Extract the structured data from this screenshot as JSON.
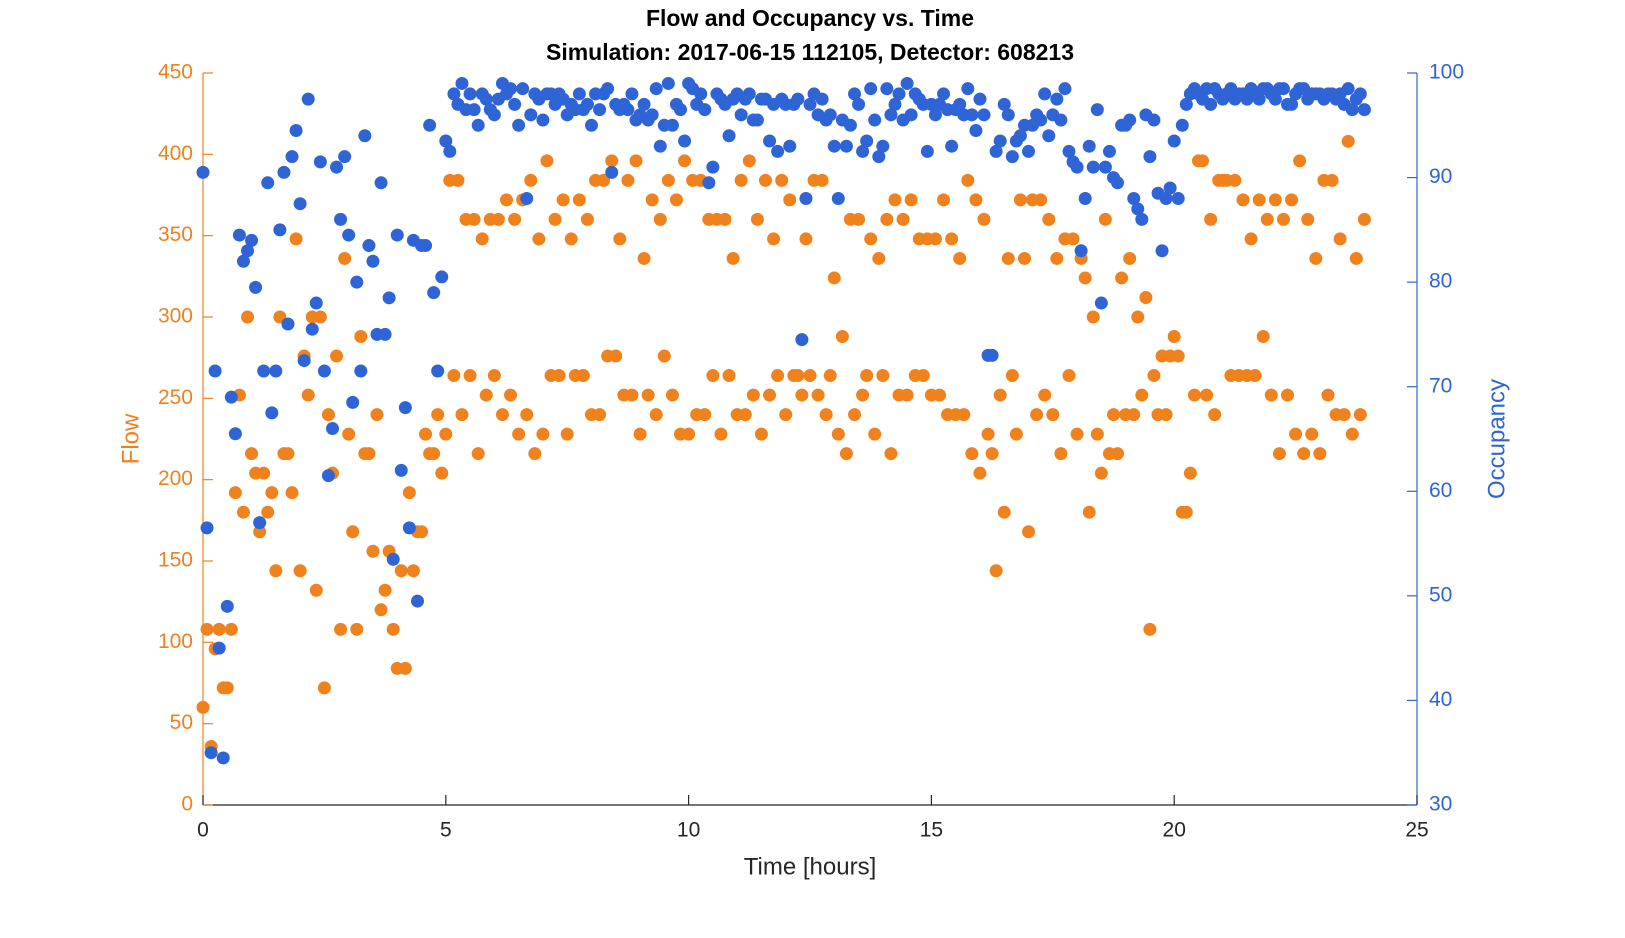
{
  "chart_data": {
    "type": "scatter",
    "title": "Flow and Occupancy vs. Time",
    "subtitle": "Simulation:  2017-06-15 112105,  Detector:  608213",
    "xlabel": "Time [hours]",
    "ylabel": "Flow",
    "y2label": "Occupancy",
    "xlim": [
      0,
      25
    ],
    "xticks": [
      0,
      5,
      10,
      15,
      20,
      25
    ],
    "ylim": [
      0,
      450
    ],
    "yticks": [
      0,
      50,
      100,
      150,
      200,
      250,
      300,
      350,
      400,
      450
    ],
    "y2lim": [
      30,
      100
    ],
    "y2ticks": [
      30,
      40,
      50,
      60,
      70,
      80,
      90,
      100
    ],
    "grid": false,
    "ycolor": "#f0821e",
    "y2color": "#2f64d6",
    "x": [
      0,
      0.083,
      0.167,
      0.25,
      0.333,
      0.417,
      0.5,
      0.583,
      0.667,
      0.75,
      0.833,
      0.917,
      1,
      1.083,
      1.167,
      1.25,
      1.333,
      1.417,
      1.5,
      1.583,
      1.667,
      1.75,
      1.833,
      1.917,
      2,
      2.083,
      2.167,
      2.25,
      2.333,
      2.417,
      2.5,
      2.583,
      2.667,
      2.75,
      2.833,
      2.917,
      3,
      3.083,
      3.167,
      3.25,
      3.333,
      3.417,
      3.5,
      3.583,
      3.667,
      3.75,
      3.833,
      3.917,
      4,
      4.083,
      4.167,
      4.25,
      4.333,
      4.417,
      4.5,
      4.583,
      4.667,
      4.75,
      4.833,
      4.917,
      5,
      5.083,
      5.167,
      5.25,
      5.333,
      5.417,
      5.5,
      5.583,
      5.667,
      5.75,
      5.833,
      5.917,
      6,
      6.083,
      6.167,
      6.25,
      6.333,
      6.417,
      6.5,
      6.583,
      6.667,
      6.75,
      6.833,
      6.917,
      7,
      7.083,
      7.167,
      7.25,
      7.333,
      7.417,
      7.5,
      7.583,
      7.667,
      7.75,
      7.833,
      7.917,
      8,
      8.083,
      8.167,
      8.25,
      8.333,
      8.417,
      8.5,
      8.583,
      8.667,
      8.75,
      8.833,
      8.917,
      9,
      9.083,
      9.167,
      9.25,
      9.333,
      9.417,
      9.5,
      9.583,
      9.667,
      9.75,
      9.833,
      9.917,
      10,
      10.083,
      10.167,
      10.25,
      10.333,
      10.417,
      10.5,
      10.583,
      10.667,
      10.75,
      10.833,
      10.917,
      11,
      11.083,
      11.167,
      11.25,
      11.333,
      11.417,
      11.5,
      11.583,
      11.667,
      11.75,
      11.833,
      11.917,
      12,
      12.083,
      12.167,
      12.25,
      12.333,
      12.417,
      12.5,
      12.583,
      12.667,
      12.75,
      12.833,
      12.917,
      13,
      13.083,
      13.167,
      13.25,
      13.333,
      13.417,
      13.5,
      13.583,
      13.667,
      13.75,
      13.833,
      13.917,
      14,
      14.083,
      14.167,
      14.25,
      14.333,
      14.417,
      14.5,
      14.583,
      14.667,
      14.75,
      14.833,
      14.917,
      15,
      15.083,
      15.167,
      15.25,
      15.333,
      15.417,
      15.5,
      15.583,
      15.667,
      15.75,
      15.833,
      15.917,
      16,
      16.083,
      16.167,
      16.25,
      16.333,
      16.417,
      16.5,
      16.583,
      16.667,
      16.75,
      16.833,
      16.917,
      17,
      17.083,
      17.167,
      17.25,
      17.333,
      17.417,
      17.5,
      17.583,
      17.667,
      17.75,
      17.833,
      17.917,
      18,
      18.083,
      18.167,
      18.25,
      18.333,
      18.417,
      18.5,
      18.583,
      18.667,
      18.75,
      18.833,
      18.917,
      19,
      19.083,
      19.167,
      19.25,
      19.333,
      19.417,
      19.5,
      19.583,
      19.667,
      19.75,
      19.833,
      19.917,
      20,
      20.083,
      20.167,
      20.25,
      20.333,
      20.417,
      20.5,
      20.583,
      20.667,
      20.75,
      20.833,
      20.917,
      21,
      21.083,
      21.167,
      21.25,
      21.333,
      21.417,
      21.5,
      21.583,
      21.667,
      21.75,
      21.833,
      21.917,
      22,
      22.083,
      22.167,
      22.25,
      22.333,
      22.417,
      22.5,
      22.583,
      22.667,
      22.75,
      22.833,
      22.917,
      23,
      23.083,
      23.167,
      23.25,
      23.333,
      23.417,
      23.5,
      23.583,
      23.667,
      23.75,
      23.833,
      23.917
    ],
    "series": [
      {
        "color": "#f0821e",
        "axis": "y",
        "values": [
          60,
          108,
          36,
          96,
          108,
          72,
          72,
          108,
          192,
          252,
          180,
          300,
          216,
          204,
          168,
          204,
          180,
          192,
          144,
          300,
          216,
          216,
          192,
          348,
          144,
          276,
          252,
          300,
          132,
          300,
          72,
          240,
          204,
          276,
          108,
          336,
          228,
          168,
          108,
          288,
          216,
          216,
          156,
          240,
          120,
          132,
          156,
          108,
          84,
          144,
          84,
          192,
          144,
          168,
          168,
          228,
          216,
          216,
          240,
          204,
          228,
          384,
          264,
          384,
          240,
          360,
          264,
          360,
          216,
          348,
          252,
          360,
          264,
          360,
          240,
          372,
          252,
          360,
          228,
          372,
          240,
          384,
          216,
          348,
          228,
          396,
          264,
          360,
          264,
          372,
          228,
          348,
          264,
          372,
          264,
          360,
          240,
          384,
          240,
          384,
          276,
          396,
          276,
          348,
          252,
          384,
          252,
          396,
          228,
          336,
          252,
          372,
          240,
          360,
          276,
          384,
          252,
          372,
          228,
          396,
          228,
          384,
          240,
          384,
          240,
          360,
          264,
          360,
          228,
          360,
          264,
          336,
          240,
          384,
          240,
          396,
          252,
          360,
          228,
          384,
          252,
          348,
          264,
          384,
          240,
          372,
          264,
          264,
          252,
          348,
          264,
          384,
          252,
          384,
          240,
          264,
          324,
          228,
          288,
          216,
          360,
          240,
          360,
          252,
          264,
          348,
          228,
          336,
          264,
          360,
          216,
          372,
          252,
          360,
          252,
          372,
          264,
          348,
          264,
          348,
          252,
          348,
          252,
          372,
          240,
          348,
          240,
          336,
          240,
          384,
          216,
          372,
          204,
          360,
          228,
          216,
          144,
          252,
          180,
          336,
          264,
          228,
          372,
          336,
          168,
          372,
          240,
          372,
          252,
          360,
          240,
          336,
          216,
          348,
          264,
          348,
          228,
          336,
          324,
          180,
          300,
          228,
          204,
          360,
          216,
          240,
          216,
          324,
          240,
          336,
          240,
          300,
          252,
          312,
          108,
          264,
          240,
          276,
          240,
          276,
          288,
          276,
          180,
          180,
          204,
          252,
          396,
          396,
          252,
          360,
          240,
          384,
          384,
          384,
          264,
          384,
          264,
          372,
          264,
          348,
          264,
          372,
          288,
          360,
          252,
          372,
          216,
          360,
          252,
          372,
          228,
          396,
          216,
          360,
          228,
          336,
          216,
          384,
          252,
          384,
          240,
          348,
          240,
          408,
          228,
          336,
          240,
          360
        ]
      },
      {
        "color": "#2f64d6",
        "axis": "y2",
        "values": [
          90.5,
          56.5,
          35,
          71.5,
          45,
          34.5,
          49,
          69,
          65.5,
          84.5,
          82,
          83,
          84,
          79.5,
          57,
          71.5,
          89.5,
          67.5,
          71.5,
          85,
          90.5,
          76,
          92,
          94.5,
          87.5,
          72.5,
          97.5,
          75.5,
          78,
          91.5,
          71.5,
          61.5,
          66,
          91,
          86,
          92,
          84.5,
          68.5,
          80,
          71.5,
          94,
          83.5,
          82,
          75,
          89.5,
          75,
          78.5,
          53.5,
          84.5,
          62,
          68,
          56.5,
          84,
          49.5,
          83.5,
          83.5,
          95,
          79,
          71.5,
          80.5,
          93.5,
          92.5,
          98,
          97,
          99,
          96.5,
          98,
          96.5,
          95,
          98,
          97.5,
          96.5,
          96,
          97.5,
          99,
          98,
          98.5,
          97,
          95,
          98.5,
          88,
          96,
          98,
          97.5,
          95.5,
          98,
          98,
          97,
          98,
          97.5,
          96,
          97,
          96.5,
          98,
          96.5,
          97,
          95,
          98,
          96.5,
          98,
          98.5,
          90.5,
          97,
          96.5,
          97,
          96.5,
          98,
          95.5,
          96,
          97,
          95.5,
          96,
          98.5,
          93,
          95,
          99,
          95,
          97,
          96.5,
          93.5,
          99,
          98.5,
          97,
          98,
          96.5,
          89.5,
          91,
          98,
          97.5,
          97,
          94,
          97.5,
          98,
          96,
          97.5,
          98,
          95.5,
          95.5,
          97.5,
          97.5,
          93.5,
          97,
          92.5,
          97.5,
          97,
          93,
          97,
          97.5,
          74.5,
          88,
          97,
          98,
          96,
          97.5,
          95.5,
          96,
          93,
          88,
          95.5,
          93,
          95,
          98,
          97,
          92.5,
          93.5,
          98.5,
          95.5,
          92,
          93,
          98.5,
          96,
          97,
          98,
          95.5,
          99,
          96,
          98,
          97.5,
          97,
          92.5,
          97,
          96,
          97,
          98,
          96.5,
          93,
          96.5,
          97,
          96,
          98.5,
          96,
          94.5,
          97.5,
          96,
          73,
          73,
          92.5,
          93.5,
          97,
          96,
          92,
          93.5,
          94,
          95,
          92.5,
          95,
          96,
          95.5,
          98,
          94,
          96,
          97.5,
          95.5,
          98.5,
          92.5,
          91.5,
          91,
          83,
          88,
          93,
          91,
          96.5,
          78,
          91,
          92.5,
          90,
          89.5,
          95,
          95,
          95.5,
          88,
          87,
          86,
          96,
          92,
          95.5,
          88.5,
          83,
          88,
          89,
          93.5,
          88,
          95,
          97,
          98,
          98.5,
          98,
          97.5,
          98.5,
          97,
          98.5,
          98,
          97.5,
          98,
          98.5,
          97.5,
          98,
          98,
          97.5,
          98.5,
          98,
          97.5,
          98.5,
          98.5,
          98,
          97.5,
          98.5,
          98.5,
          97,
          97,
          98,
          98.5,
          98.5,
          97.5,
          98,
          98,
          98,
          97.5,
          98,
          98,
          97.5,
          98,
          97,
          98.5,
          96.5,
          97.5,
          98,
          96.5
        ]
      }
    ]
  }
}
